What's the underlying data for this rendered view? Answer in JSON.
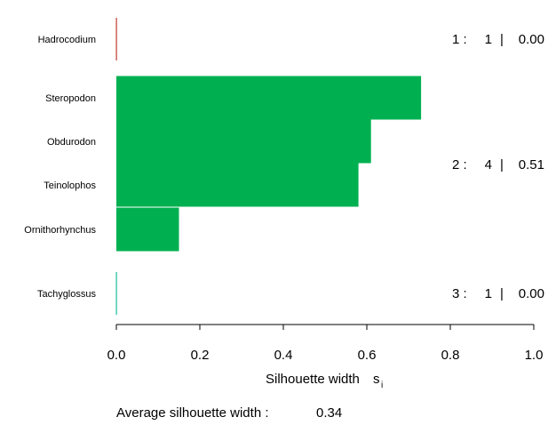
{
  "chart_data": {
    "type": "bar",
    "orientation": "horizontal",
    "xlabel": "Silhouette width",
    "xlabel_subscript_symbol": "s",
    "xlabel_subscript_index": "i",
    "xlim": [
      0,
      1
    ],
    "xticks": [
      0.0,
      0.2,
      0.4,
      0.6,
      0.8,
      1.0
    ],
    "xtick_labels": [
      "0.0",
      "0.2",
      "0.4",
      "0.6",
      "0.8",
      "1.0"
    ],
    "bars": [
      {
        "label": "Hadrocodium",
        "value": 0.0,
        "cluster": 1
      },
      {
        "label": "Steropodon",
        "value": 0.73,
        "cluster": 2
      },
      {
        "label": "Obdurodon",
        "value": 0.61,
        "cluster": 2
      },
      {
        "label": "Teinolophos",
        "value": 0.58,
        "cluster": 2
      },
      {
        "label": "Ornithorhynchus",
        "value": 0.15,
        "cluster": 2
      },
      {
        "label": "Tachyglossus",
        "value": 0.0,
        "cluster": 3
      }
    ],
    "clusters": [
      {
        "id": "1",
        "n": "1",
        "avg": "0.00",
        "color": "#c0392b"
      },
      {
        "id": "2",
        "n": "4",
        "avg": "0.51",
        "color": "#00b050"
      },
      {
        "id": "3",
        "n": "1",
        "avg": "0.00",
        "color": "#1abc9c"
      }
    ],
    "footer_label": "Average silhouette width :",
    "footer_value": "0.34"
  }
}
